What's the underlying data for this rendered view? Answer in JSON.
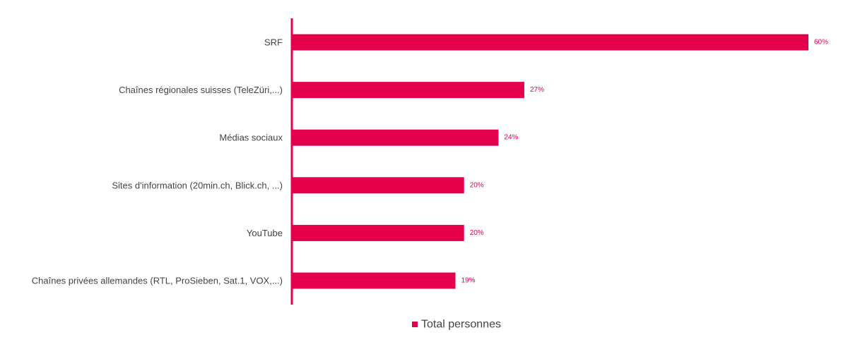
{
  "chart_data": {
    "type": "bar",
    "orientation": "horizontal",
    "categories": [
      "SRF",
      "Chaînes régionales suisses (TeleZüri,...)",
      "Médias sociaux",
      "Sites d'information (20min.ch, Blick.ch, ...)",
      "YouTube",
      "Chaînes privées allemandes (RTL, ProSieben, Sat.1, VOX,...)"
    ],
    "series": [
      {
        "name": "Total personnes",
        "values": [
          60,
          27,
          24,
          20,
          20,
          19
        ],
        "value_labels": [
          "60%",
          "27%",
          "24%",
          "20%",
          "20%",
          "19%"
        ],
        "color": "#e4004b"
      }
    ],
    "xlim": [
      0,
      60
    ],
    "grid": false,
    "legend": "bottom-center"
  }
}
